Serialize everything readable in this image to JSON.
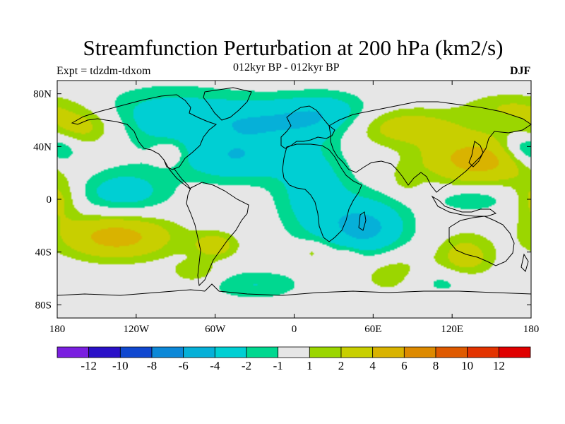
{
  "chart_data": {
    "type": "filled-contour-map",
    "title": "Streamfunction Perturbation at 200 hPa (km2/s)",
    "subtitle": "012kyr BP - 012kyr BP",
    "left_label": "Expt = tdzdm-tdxom",
    "right_label": "DJF",
    "x_ticks": [
      "180",
      "120W",
      "60W",
      "0",
      "60E",
      "120E",
      "180"
    ],
    "y_ticks": [
      "80N",
      "40N",
      "0",
      "40S",
      "80S"
    ],
    "lon_range": [
      -180,
      180
    ],
    "lat_range": [
      -90,
      90
    ],
    "contour_levels": [
      "-12",
      "-10",
      "-8",
      "-6",
      "-4",
      "-2",
      "-1",
      "1",
      "2",
      "4",
      "6",
      "8",
      "10",
      "12"
    ],
    "colorbar_colors": [
      "#7a1fe0",
      "#2a10c8",
      "#1048d0",
      "#0c88d8",
      "#06b0d8",
      "#00cfd3",
      "#00d890",
      "#e6e6e6",
      "#9bd600",
      "#c8cf00",
      "#d9b300",
      "#dd8a00",
      "#df5a00",
      "#e33300",
      "#e00000"
    ],
    "background_color": "#e6e6e6",
    "anomalies": [
      {
        "lon": -95,
        "lat": 62,
        "value": -3,
        "sx": 40,
        "sy": 16
      },
      {
        "lon": -25,
        "lat": 58,
        "value": -3,
        "sx": 30,
        "sy": 13
      },
      {
        "lon": 25,
        "lat": 63,
        "value": -3.5,
        "sx": 25,
        "sy": 12
      },
      {
        "lon": -45,
        "lat": 30,
        "value": -3.5,
        "sx": 30,
        "sy": 12
      },
      {
        "lon": 15,
        "lat": 5,
        "value": -3,
        "sx": 20,
        "sy": 25
      },
      {
        "lon": 55,
        "lat": -22,
        "value": -4.5,
        "sx": 22,
        "sy": 16
      },
      {
        "lon": -130,
        "lat": 5,
        "value": -3,
        "sx": 25,
        "sy": 13
      },
      {
        "lon": -178,
        "lat": 35,
        "value": -2.5,
        "sx": 12,
        "sy": 9
      },
      {
        "lon": 172,
        "lat": 40,
        "value": -2,
        "sx": 12,
        "sy": 7
      },
      {
        "lon": 135,
        "lat": 0,
        "value": -2,
        "sx": 20,
        "sy": 7
      },
      {
        "lon": -30,
        "lat": -65,
        "value": -2,
        "sx": 25,
        "sy": 8
      },
      {
        "lon": 115,
        "lat": -62,
        "value": -2,
        "sx": 20,
        "sy": 8
      },
      {
        "lon": -135,
        "lat": -28,
        "value": 5,
        "sx": 30,
        "sy": 12
      },
      {
        "lon": 140,
        "lat": 30,
        "value": 5,
        "sx": 30,
        "sy": 13
      },
      {
        "lon": -160,
        "lat": 55,
        "value": 3,
        "sx": 20,
        "sy": 10
      },
      {
        "lon": 80,
        "lat": 55,
        "value": 3,
        "sx": 35,
        "sy": 10
      },
      {
        "lon": 165,
        "lat": 70,
        "value": 2,
        "sx": 25,
        "sy": 8
      },
      {
        "lon": -95,
        "lat": 35,
        "value": 2,
        "sx": 8,
        "sy": 6
      },
      {
        "lon": -60,
        "lat": -35,
        "value": 3,
        "sx": 12,
        "sy": 7
      },
      {
        "lon": 130,
        "lat": -45,
        "value": 3,
        "sx": 15,
        "sy": 13
      },
      {
        "lon": 75,
        "lat": -55,
        "value": 2,
        "sx": 20,
        "sy": 12
      },
      {
        "lon": -75,
        "lat": -55,
        "value": 2,
        "sx": 12,
        "sy": 6
      },
      {
        "lon": 15,
        "lat": -40,
        "value": 2,
        "sx": 10,
        "sy": 6
      },
      {
        "lon": 40,
        "lat": -45,
        "value": 1.8,
        "sx": 8,
        "sy": 6
      },
      {
        "lon": -178,
        "lat": 0,
        "value": 2.5,
        "sx": 10,
        "sy": 12
      },
      {
        "lon": 85,
        "lat": 15,
        "value": 1.5,
        "sx": 8,
        "sy": 8
      }
    ]
  }
}
